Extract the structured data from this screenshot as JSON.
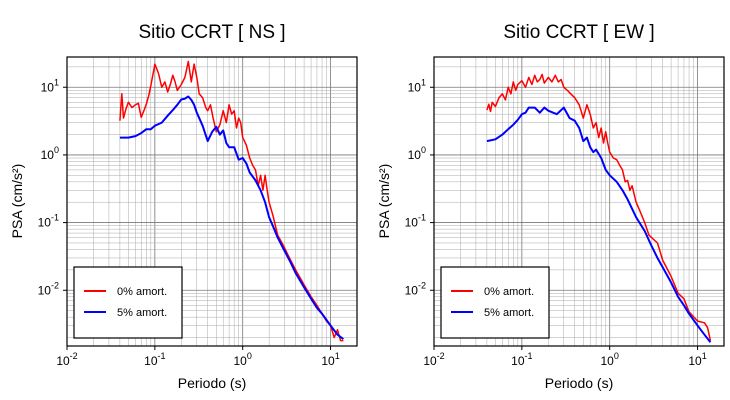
{
  "chart_data": [
    {
      "type": "line",
      "title": "Sitio CCRT [ NS ]",
      "xlabel": "Periodo (s)",
      "ylabel": "PSA (cm/s²)",
      "xscale": "log",
      "yscale": "log",
      "xlim": [
        0.01,
        20
      ],
      "ylim": [
        0.0015,
        28
      ],
      "grid": true,
      "legend_position": "bottom-left",
      "series": [
        {
          "name": "0% amort.",
          "color": "#ff0000",
          "points": [
            [
              0.04,
              3.2
            ],
            [
              0.042,
              8.0
            ],
            [
              0.044,
              3.5
            ],
            [
              0.047,
              4.8
            ],
            [
              0.05,
              6.0
            ],
            [
              0.055,
              5.0
            ],
            [
              0.06,
              5.5
            ],
            [
              0.065,
              5.8
            ],
            [
              0.07,
              3.6
            ],
            [
              0.075,
              4.5
            ],
            [
              0.08,
              5.6
            ],
            [
              0.085,
              7.5
            ],
            [
              0.09,
              10.5
            ],
            [
              0.1,
              22.0
            ],
            [
              0.11,
              16.0
            ],
            [
              0.12,
              10.0
            ],
            [
              0.13,
              12.0
            ],
            [
              0.14,
              8.5
            ],
            [
              0.15,
              11.0
            ],
            [
              0.16,
              15.0
            ],
            [
              0.17,
              12.0
            ],
            [
              0.18,
              9.0
            ],
            [
              0.2,
              11.0
            ],
            [
              0.22,
              14.0
            ],
            [
              0.24,
              24.0
            ],
            [
              0.26,
              12.0
            ],
            [
              0.28,
              22.0
            ],
            [
              0.3,
              14.0
            ],
            [
              0.32,
              8.0
            ],
            [
              0.35,
              7.0
            ],
            [
              0.38,
              5.0
            ],
            [
              0.4,
              4.5
            ],
            [
              0.43,
              5.5
            ],
            [
              0.46,
              3.5
            ],
            [
              0.5,
              2.2
            ],
            [
              0.55,
              2.8
            ],
            [
              0.6,
              4.5
            ],
            [
              0.65,
              3.0
            ],
            [
              0.7,
              5.5
            ],
            [
              0.75,
              4.0
            ],
            [
              0.8,
              4.5
            ],
            [
              0.85,
              2.5
            ],
            [
              0.9,
              3.5
            ],
            [
              0.95,
              3.0
            ],
            [
              1.0,
              1.8
            ],
            [
              1.1,
              1.4
            ],
            [
              1.2,
              0.9
            ],
            [
              1.3,
              0.7
            ],
            [
              1.4,
              0.6
            ],
            [
              1.5,
              0.35
            ],
            [
              1.6,
              0.5
            ],
            [
              1.7,
              0.3
            ],
            [
              1.8,
              0.5
            ],
            [
              1.9,
              0.3
            ],
            [
              2.0,
              0.2
            ],
            [
              2.2,
              0.13
            ],
            [
              2.5,
              0.065
            ],
            [
              2.8,
              0.05
            ],
            [
              3.0,
              0.042
            ],
            [
              3.5,
              0.028
            ],
            [
              4.0,
              0.02
            ],
            [
              5.0,
              0.012
            ],
            [
              6.0,
              0.008
            ],
            [
              7.0,
              0.006
            ],
            [
              8.0,
              0.0045
            ],
            [
              9.0,
              0.0035
            ],
            [
              10.0,
              0.003
            ],
            [
              11.0,
              0.002
            ],
            [
              12.0,
              0.0026
            ],
            [
              13.0,
              0.0018
            ],
            [
              14.0,
              0.0018
            ]
          ]
        },
        {
          "name": "5% amort.",
          "color": "#0000ff",
          "points": [
            [
              0.04,
              1.8
            ],
            [
              0.05,
              1.8
            ],
            [
              0.06,
              1.9
            ],
            [
              0.07,
              2.1
            ],
            [
              0.08,
              2.4
            ],
            [
              0.09,
              2.4
            ],
            [
              0.1,
              2.7
            ],
            [
              0.12,
              3.0
            ],
            [
              0.14,
              3.8
            ],
            [
              0.16,
              4.6
            ],
            [
              0.18,
              5.5
            ],
            [
              0.2,
              6.6
            ],
            [
              0.22,
              6.8
            ],
            [
              0.24,
              7.3
            ],
            [
              0.26,
              6.5
            ],
            [
              0.28,
              5.5
            ],
            [
              0.3,
              4.2
            ],
            [
              0.35,
              2.7
            ],
            [
              0.4,
              1.6
            ],
            [
              0.45,
              2.2
            ],
            [
              0.5,
              2.6
            ],
            [
              0.55,
              2.0
            ],
            [
              0.6,
              2.3
            ],
            [
              0.65,
              1.5
            ],
            [
              0.7,
              1.3
            ],
            [
              0.8,
              1.3
            ],
            [
              0.9,
              0.85
            ],
            [
              1.0,
              0.9
            ],
            [
              1.1,
              0.75
            ],
            [
              1.2,
              0.55
            ],
            [
              1.4,
              0.42
            ],
            [
              1.6,
              0.3
            ],
            [
              1.8,
              0.2
            ],
            [
              2.0,
              0.12
            ],
            [
              2.2,
              0.09
            ],
            [
              2.5,
              0.06
            ],
            [
              3.0,
              0.038
            ],
            [
              3.5,
              0.026
            ],
            [
              4.0,
              0.018
            ],
            [
              5.0,
              0.011
            ],
            [
              6.0,
              0.0075
            ],
            [
              7.0,
              0.0055
            ],
            [
              8.0,
              0.0045
            ],
            [
              10.0,
              0.003
            ],
            [
              12.0,
              0.0022
            ],
            [
              14.0,
              0.0019
            ]
          ]
        }
      ]
    },
    {
      "type": "line",
      "title": "Sitio CCRT [ EW ]",
      "xlabel": "Periodo (s)",
      "ylabel": "PSA (cm/s²)",
      "xscale": "log",
      "yscale": "log",
      "xlim": [
        0.01,
        20
      ],
      "ylim": [
        0.0015,
        28
      ],
      "grid": true,
      "legend_position": "bottom-left",
      "series": [
        {
          "name": "0% amort.",
          "color": "#ff0000",
          "points": [
            [
              0.04,
              4.6
            ],
            [
              0.042,
              5.6
            ],
            [
              0.044,
              4.4
            ],
            [
              0.046,
              6.0
            ],
            [
              0.05,
              5.2
            ],
            [
              0.055,
              7.0
            ],
            [
              0.06,
              8.0
            ],
            [
              0.065,
              6.5
            ],
            [
              0.07,
              10.0
            ],
            [
              0.075,
              8.0
            ],
            [
              0.08,
              12.0
            ],
            [
              0.085,
              9.0
            ],
            [
              0.09,
              11.0
            ],
            [
              0.1,
              12.5
            ],
            [
              0.11,
              10.0
            ],
            [
              0.12,
              14.0
            ],
            [
              0.13,
              11.0
            ],
            [
              0.14,
              15.0
            ],
            [
              0.15,
              12.0
            ],
            [
              0.16,
              13.0
            ],
            [
              0.17,
              15.5
            ],
            [
              0.18,
              11.5
            ],
            [
              0.2,
              14.0
            ],
            [
              0.22,
              12.0
            ],
            [
              0.24,
              15.0
            ],
            [
              0.26,
              12.0
            ],
            [
              0.28,
              13.0
            ],
            [
              0.3,
              10.0
            ],
            [
              0.33,
              9.0
            ],
            [
              0.36,
              8.0
            ],
            [
              0.4,
              7.0
            ],
            [
              0.45,
              5.5
            ],
            [
              0.5,
              3.5
            ],
            [
              0.55,
              5.5
            ],
            [
              0.6,
              4.0
            ],
            [
              0.65,
              2.5
            ],
            [
              0.7,
              3.0
            ],
            [
              0.75,
              1.8
            ],
            [
              0.8,
              2.5
            ],
            [
              0.85,
              1.5
            ],
            [
              0.9,
              2.2
            ],
            [
              0.95,
              1.5
            ],
            [
              1.0,
              1.1
            ],
            [
              1.1,
              0.9
            ],
            [
              1.2,
              0.85
            ],
            [
              1.3,
              0.7
            ],
            [
              1.4,
              0.6
            ],
            [
              1.5,
              0.4
            ],
            [
              1.6,
              0.42
            ],
            [
              1.7,
              0.3
            ],
            [
              1.8,
              0.35
            ],
            [
              2.0,
              0.2
            ],
            [
              2.2,
              0.15
            ],
            [
              2.5,
              0.1
            ],
            [
              2.8,
              0.065
            ],
            [
              3.0,
              0.06
            ],
            [
              3.5,
              0.05
            ],
            [
              4.0,
              0.028
            ],
            [
              5.0,
              0.016
            ],
            [
              6.0,
              0.009
            ],
            [
              7.0,
              0.0075
            ],
            [
              8.0,
              0.0048
            ],
            [
              10.0,
              0.0035
            ],
            [
              12.0,
              0.0033
            ],
            [
              13.0,
              0.0028
            ],
            [
              14.0,
              0.0018
            ]
          ]
        },
        {
          "name": "5% amort.",
          "color": "#0000ff",
          "points": [
            [
              0.04,
              1.6
            ],
            [
              0.05,
              1.7
            ],
            [
              0.06,
              2.0
            ],
            [
              0.07,
              2.4
            ],
            [
              0.08,
              2.8
            ],
            [
              0.09,
              3.3
            ],
            [
              0.1,
              4.0
            ],
            [
              0.11,
              4.2
            ],
            [
              0.12,
              5.0
            ],
            [
              0.14,
              5.0
            ],
            [
              0.16,
              4.2
            ],
            [
              0.18,
              5.0
            ],
            [
              0.2,
              4.5
            ],
            [
              0.25,
              4.0
            ],
            [
              0.3,
              5.0
            ],
            [
              0.35,
              3.5
            ],
            [
              0.4,
              3.2
            ],
            [
              0.45,
              2.5
            ],
            [
              0.5,
              1.6
            ],
            [
              0.55,
              1.8
            ],
            [
              0.6,
              1.3
            ],
            [
              0.65,
              1.1
            ],
            [
              0.7,
              1.2
            ],
            [
              0.8,
              0.9
            ],
            [
              0.9,
              0.6
            ],
            [
              1.0,
              0.5
            ],
            [
              1.2,
              0.4
            ],
            [
              1.4,
              0.3
            ],
            [
              1.6,
              0.22
            ],
            [
              1.8,
              0.16
            ],
            [
              2.0,
              0.12
            ],
            [
              2.5,
              0.075
            ],
            [
              3.0,
              0.045
            ],
            [
              3.5,
              0.03
            ],
            [
              4.0,
              0.022
            ],
            [
              5.0,
              0.013
            ],
            [
              6.0,
              0.008
            ],
            [
              7.0,
              0.006
            ],
            [
              8.0,
              0.0045
            ],
            [
              10.0,
              0.003
            ],
            [
              12.0,
              0.0022
            ],
            [
              14.0,
              0.0017
            ]
          ]
        }
      ]
    }
  ]
}
